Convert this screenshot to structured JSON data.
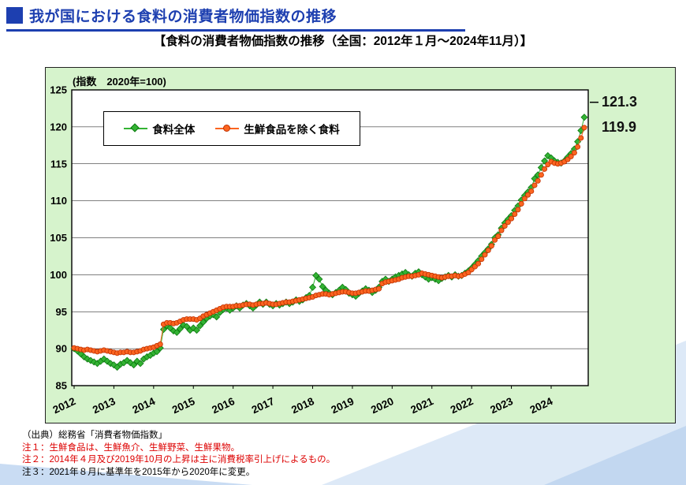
{
  "header": {
    "title": "我が国における食料の消費者物価指数の推移"
  },
  "subtitle": "【食料の消費者物価指数の推移（全国：2012年１月～2024年11月）】",
  "chart_data": {
    "type": "line",
    "title": "食料の消費者物価指数の推移（全国：2012年１月～2024年11月）",
    "unit_label": "(指数　2020年=100)",
    "x_start": {
      "year": 2012,
      "month": 1
    },
    "x_end": {
      "year": 2024,
      "month": 11
    },
    "frequency": "monthly",
    "ylim": [
      85,
      125
    ],
    "y_ticks": [
      85,
      90,
      95,
      100,
      105,
      110,
      115,
      120,
      125
    ],
    "x_tick_years": [
      2012,
      2013,
      2014,
      2015,
      2016,
      2017,
      2018,
      2019,
      2020,
      2021,
      2022,
      2023,
      2024
    ],
    "grid": true,
    "legend_position": "top-left",
    "panel_bg": "#d6f3cc",
    "plot_bg": "#ffffff",
    "series": [
      {
        "name": "食料全体",
        "marker": "diamond",
        "color": "#33b333",
        "edge": "#0e7a12",
        "end_label": "121.3",
        "values": [
          90.0,
          89.7,
          89.3,
          88.9,
          88.6,
          88.4,
          88.2,
          88.0,
          88.3,
          88.6,
          88.3,
          88.0,
          87.8,
          87.5,
          87.9,
          88.1,
          88.4,
          88.1,
          87.8,
          88.3,
          88.0,
          88.6,
          88.9,
          89.1,
          89.4,
          89.6,
          90.1,
          92.6,
          93.1,
          92.8,
          92.4,
          92.2,
          92.7,
          93.2,
          93.0,
          92.5,
          92.8,
          92.5,
          93.1,
          93.6,
          94.1,
          94.4,
          94.6,
          94.3,
          94.9,
          95.3,
          95.5,
          95.2,
          95.5,
          95.8,
          95.5,
          95.9,
          96.1,
          95.8,
          95.5,
          95.9,
          96.3,
          96.0,
          96.3,
          96.0,
          95.8,
          96.1,
          95.9,
          96.1,
          96.3,
          96.1,
          96.3,
          96.6,
          96.4,
          96.6,
          96.9,
          97.2,
          98.3,
          99.9,
          99.4,
          98.4,
          97.9,
          97.5,
          97.3,
          97.6,
          97.9,
          98.3,
          98.0,
          97.5,
          97.3,
          97.1,
          97.5,
          97.8,
          98.1,
          97.9,
          97.6,
          97.9,
          98.3,
          99.1,
          99.4,
          99.1,
          99.4,
          99.7,
          99.9,
          100.1,
          100.3,
          100.0,
          99.8,
          100.2,
          100.4,
          100.0,
          99.7,
          99.4,
          99.6,
          99.4,
          99.2,
          99.5,
          99.7,
          99.9,
          99.7,
          100.0,
          99.8,
          99.9,
          100.2,
          100.5,
          100.9,
          101.4,
          101.9,
          102.5,
          103.0,
          103.5,
          104.1,
          105.0,
          105.4,
          106.3,
          107.0,
          107.5,
          108.0,
          108.7,
          109.3,
          110.1,
          110.7,
          111.2,
          111.8,
          113.0,
          113.5,
          114.5,
          115.4,
          116.1,
          115.8,
          115.4,
          115.2,
          115.1,
          115.4,
          115.9,
          116.4,
          117.0,
          118.0,
          119.5,
          121.3
        ]
      },
      {
        "name": "生鮮食品を除く食料",
        "marker": "circle",
        "color": "#fb6520",
        "edge": "#c03000",
        "end_label": "119.9",
        "values": [
          90.1,
          90.0,
          89.9,
          89.8,
          89.9,
          89.8,
          89.7,
          89.6,
          89.7,
          89.8,
          89.7,
          89.6,
          89.5,
          89.4,
          89.5,
          89.5,
          89.6,
          89.5,
          89.5,
          89.6,
          89.7,
          89.9,
          90.0,
          90.1,
          90.2,
          90.4,
          90.6,
          93.3,
          93.5,
          93.5,
          93.4,
          93.5,
          93.7,
          93.9,
          94.0,
          94.0,
          94.0,
          93.9,
          94.1,
          94.4,
          94.6,
          94.8,
          95.0,
          95.2,
          95.4,
          95.6,
          95.7,
          95.7,
          95.7,
          95.8,
          95.8,
          95.9,
          96.0,
          96.0,
          95.9,
          96.0,
          96.1,
          96.1,
          96.2,
          96.1,
          96.0,
          96.0,
          96.1,
          96.2,
          96.3,
          96.3,
          96.4,
          96.5,
          96.6,
          96.7,
          96.8,
          96.9,
          97.0,
          97.2,
          97.3,
          97.4,
          97.4,
          97.3,
          97.4,
          97.5,
          97.6,
          97.7,
          97.7,
          97.6,
          97.5,
          97.5,
          97.6,
          97.7,
          97.8,
          97.8,
          97.9,
          98.0,
          98.1,
          98.8,
          99.0,
          99.1,
          99.2,
          99.3,
          99.4,
          99.6,
          99.7,
          99.8,
          99.8,
          99.9,
          100.0,
          100.2,
          100.1,
          100.0,
          99.9,
          99.8,
          99.7,
          99.6,
          99.7,
          99.8,
          99.8,
          99.9,
          99.8,
          99.9,
          100.1,
          100.3,
          100.7,
          101.1,
          101.5,
          102.1,
          102.7,
          103.3,
          103.9,
          104.7,
          105.2,
          106.0,
          106.6,
          107.1,
          107.6,
          108.2,
          108.8,
          109.6,
          110.3,
          110.8,
          111.3,
          112.1,
          112.7,
          113.5,
          114.3,
          114.9,
          115.3,
          115.1,
          115.0,
          115.1,
          115.3,
          115.6,
          116.0,
          116.5,
          117.3,
          118.5,
          119.9
        ]
      }
    ]
  },
  "notes": [
    {
      "text": "（出典）総務省「消費者物価指数」",
      "color": "#000000"
    },
    {
      "text": "注１：生鮮食品は、生鮮魚介、生鮮野菜、生鮮果物。",
      "color": "#dd0000"
    },
    {
      "text": "注２：2014年４月及び2019年10月の上昇は主に消費税率引上げによるもの。",
      "color": "#dd0000"
    },
    {
      "text": "注３：2021年８月に基準年を2015年から2020年に変更。",
      "color": "#000000"
    }
  ],
  "decor": {
    "light_blue_1": "#c9dcf3",
    "light_blue_2": "#dde9f7",
    "light_blue_3": "#c2d7f0"
  },
  "accent_colors": {
    "title_blue": "#1d3fb0"
  }
}
